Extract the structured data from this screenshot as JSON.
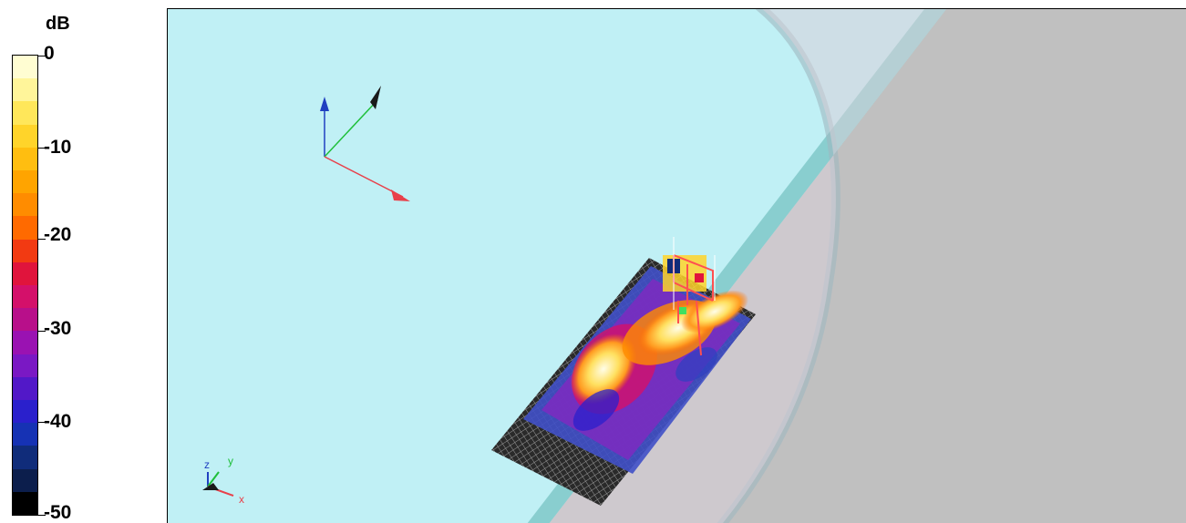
{
  "colorbar": {
    "unit": "dB",
    "tick_labels": [
      "0",
      "-10",
      "-20",
      "-30",
      "-40",
      "-50"
    ],
    "range": [
      -50,
      0
    ],
    "colors_top_to_bottom": [
      "#fffdd2",
      "#fff59a",
      "#ffe75a",
      "#ffd42a",
      "#ffbe10",
      "#ffa400",
      "#ff8c00",
      "#ff6a00",
      "#f23a12",
      "#e0143c",
      "#d4106a",
      "#b80f8a",
      "#9a12b2",
      "#7a18c4",
      "#5218c8",
      "#2a20cc",
      "#1632b4",
      "#102c7a",
      "#0c1e4c",
      "#000000"
    ]
  },
  "scene": {
    "background_color": "#c0f0f5",
    "ground_color": "#c0c0c0",
    "triad_axes": [
      "x",
      "y",
      "z"
    ],
    "axis_colors": {
      "x": "#e8404a",
      "y": "#1fbf3a",
      "z": "#2040c0"
    }
  }
}
